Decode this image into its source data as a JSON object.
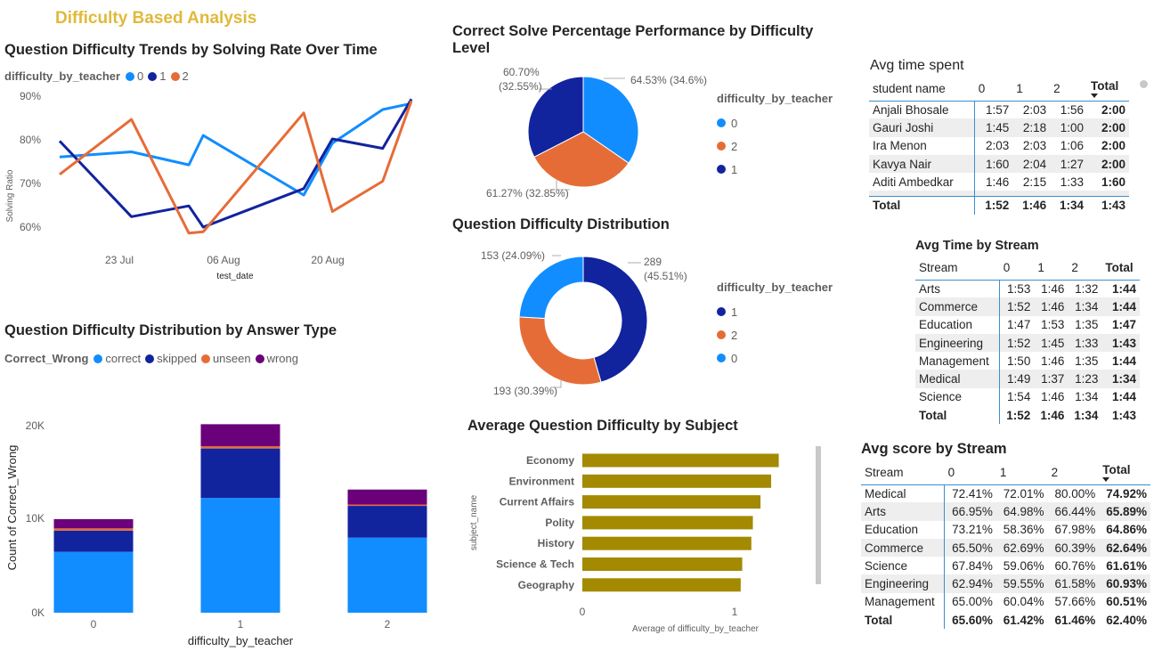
{
  "page": {
    "title": "Difficulty Based Analysis"
  },
  "colors": {
    "c0": "#118DFF",
    "c1": "#12239E",
    "c2": "#E66C37",
    "c3": "#6B007B",
    "subject": "#A38A00",
    "title": "#E0B93A",
    "table_line": "#3A8FD0"
  },
  "trends": {
    "title": "Question Difficulty Trends by Solving Rate Over Time",
    "legend_title": "difficulty_by_teacher",
    "legend": [
      "0",
      "1",
      "2"
    ],
    "xlabel": "test_date",
    "ylabel": "Solving Ratio",
    "yticks": [
      "90%",
      "80%",
      "70%",
      "60%"
    ],
    "xticks": [
      "23 Jul",
      "06 Aug",
      "20 Aug"
    ]
  },
  "answer_type": {
    "title": "Question Difficulty Distribution by Answer Type",
    "legend_title": "Correct_Wrong",
    "legend": [
      "correct",
      "skipped",
      "unseen",
      "wrong"
    ],
    "ylabel": "Count of Correct_Wrong",
    "xlabel": "difficulty_by_teacher",
    "yticks": [
      "20K",
      "10K",
      "0K"
    ],
    "xticks": [
      "0",
      "1",
      "2"
    ]
  },
  "pie": {
    "title": "Correct Solve Percentage Performance by Difficulty Level",
    "legend_title": "difficulty_by_teacher",
    "legend": [
      "0",
      "2",
      "1"
    ],
    "labels": {
      "l0": "64.53% (34.6%)",
      "l2a": "61.27% (32.85%)",
      "l1a": "60.70%",
      "l1b": "(32.55%)"
    }
  },
  "donut": {
    "title": "Question Difficulty Distribution",
    "legend_title": "difficulty_by_teacher",
    "legend": [
      "1",
      "2",
      "0"
    ],
    "labels": {
      "l1a": "289",
      "l1b": "(45.51%)",
      "l2": "193 (30.39%)",
      "l0": "153 (24.09%)"
    }
  },
  "subject": {
    "title": "Average Question Difficulty by Subject",
    "ylabel": "subject_name",
    "xlabel": "Average of difficulty_by_teacher",
    "xticks": [
      "0",
      "1"
    ]
  },
  "avg_time": {
    "title": "Avg time spent",
    "headers": [
      "student name",
      "0",
      "1",
      "2",
      "Total"
    ],
    "rows": [
      [
        "Anjali Bhosale",
        "1:57",
        "2:03",
        "1:56",
        "2:00"
      ],
      [
        "Gauri Joshi",
        "1:45",
        "2:18",
        "1:00",
        "2:00"
      ],
      [
        "Ira Menon",
        "2:03",
        "2:03",
        "1:06",
        "2:00"
      ],
      [
        "Kavya Nair",
        "1:60",
        "2:04",
        "1:27",
        "2:00"
      ],
      [
        "Aditi Ambedkar",
        "1:46",
        "2:15",
        "1:33",
        "1:60"
      ]
    ],
    "total": [
      "Total",
      "1:52",
      "1:46",
      "1:34",
      "1:43"
    ]
  },
  "time_stream": {
    "title": "Avg Time by Stream",
    "headers": [
      "Stream",
      "0",
      "1",
      "2",
      "Total"
    ],
    "rows": [
      [
        "Arts",
        "1:53",
        "1:46",
        "1:32",
        "1:44"
      ],
      [
        "Commerce",
        "1:52",
        "1:46",
        "1:34",
        "1:44"
      ],
      [
        "Education",
        "1:47",
        "1:53",
        "1:35",
        "1:47"
      ],
      [
        "Engineering",
        "1:52",
        "1:45",
        "1:33",
        "1:43"
      ],
      [
        "Management",
        "1:50",
        "1:46",
        "1:35",
        "1:44"
      ],
      [
        "Medical",
        "1:49",
        "1:37",
        "1:23",
        "1:34"
      ],
      [
        "Science",
        "1:54",
        "1:46",
        "1:34",
        "1:44"
      ]
    ],
    "total": [
      "Total",
      "1:52",
      "1:46",
      "1:34",
      "1:43"
    ]
  },
  "score_stream": {
    "title": "Avg score by Stream",
    "headers": [
      "Stream",
      "0",
      "1",
      "2",
      "Total"
    ],
    "rows": [
      [
        "Medical",
        "72.41%",
        "72.01%",
        "80.00%",
        "74.92%"
      ],
      [
        "Arts",
        "66.95%",
        "64.98%",
        "66.44%",
        "65.89%"
      ],
      [
        "Education",
        "73.21%",
        "58.36%",
        "67.98%",
        "64.86%"
      ],
      [
        "Commerce",
        "65.50%",
        "62.69%",
        "60.39%",
        "62.64%"
      ],
      [
        "Science",
        "67.84%",
        "59.06%",
        "60.76%",
        "61.61%"
      ],
      [
        "Engineering",
        "62.94%",
        "59.55%",
        "61.58%",
        "60.93%"
      ],
      [
        "Management",
        "65.00%",
        "60.04%",
        "57.66%",
        "60.51%"
      ]
    ],
    "total": [
      "Total",
      "65.60%",
      "61.42%",
      "61.46%",
      "62.40%"
    ]
  },
  "chart_data": [
    {
      "type": "line",
      "title": "Question Difficulty Trends by Solving Rate Over Time",
      "xlabel": "test_date",
      "ylabel": "Solving Ratio",
      "x": [
        "2024-07-13",
        "2024-07-23",
        "2024-07-31",
        "2024-08-02",
        "2024-08-16",
        "2024-08-20",
        "2024-08-27",
        "2024-08-31"
      ],
      "ylim": [
        0.565,
        0.905
      ],
      "series": [
        {
          "name": "0",
          "values": [
            0.758,
            0.77,
            0.74,
            0.808,
            0.67,
            0.79,
            0.868,
            0.882
          ]
        },
        {
          "name": "1",
          "values": [
            0.795,
            0.62,
            0.645,
            0.596,
            0.685,
            0.8,
            0.778,
            0.892
          ]
        },
        {
          "name": "2",
          "values": [
            0.718,
            0.845,
            0.582,
            0.585,
            0.86,
            0.632,
            0.702,
            0.888
          ]
        }
      ]
    },
    {
      "type": "bar",
      "stacked": true,
      "title": "Question Difficulty Distribution by Answer Type",
      "xlabel": "difficulty_by_teacher",
      "ylabel": "Count of Correct_Wrong",
      "categories": [
        "0",
        "1",
        "2"
      ],
      "ylim": [
        0,
        23000
      ],
      "series": [
        {
          "name": "correct",
          "values": [
            6900,
            13000,
            8500
          ]
        },
        {
          "name": "skipped",
          "values": [
            2400,
            5600,
            3600
          ]
        },
        {
          "name": "unseen",
          "values": [
            250,
            250,
            150
          ]
        },
        {
          "name": "wrong",
          "values": [
            1050,
            2500,
            1700
          ]
        }
      ]
    },
    {
      "type": "pie",
      "title": "Correct Solve Percentage Performance by Difficulty Level",
      "categories": [
        "0",
        "2",
        "1"
      ],
      "values": [
        64.53,
        61.27,
        60.7
      ]
    },
    {
      "type": "pie",
      "donut": true,
      "title": "Question Difficulty Distribution",
      "categories": [
        "1",
        "2",
        "0"
      ],
      "values": [
        289,
        193,
        153
      ]
    },
    {
      "type": "bar",
      "orientation": "horizontal",
      "title": "Average Question Difficulty by Subject",
      "xlabel": "Average of difficulty_by_teacher",
      "ylabel": "subject_name",
      "categories": [
        "Economy",
        "Environment",
        "Current Affairs",
        "Polity",
        "History",
        "Science & Tech",
        "Geography"
      ],
      "values": [
        1.29,
        1.24,
        1.17,
        1.12,
        1.11,
        1.05,
        1.04
      ],
      "xlim": [
        0,
        1.3
      ]
    }
  ]
}
